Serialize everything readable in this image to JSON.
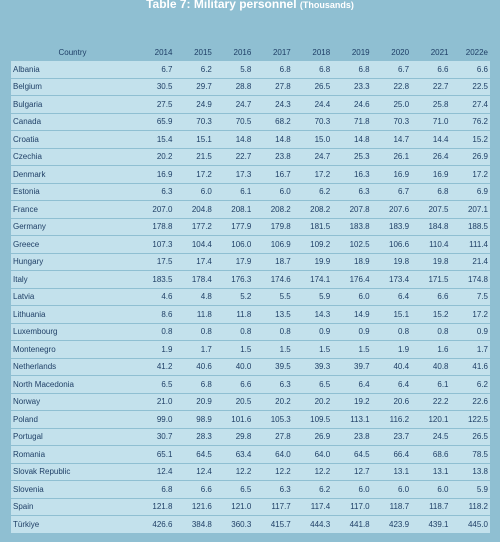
{
  "header": {
    "title": "Table 7: Military personnel",
    "unit": "(Thousands)"
  },
  "table": {
    "columns": [
      "Country",
      "2014",
      "2015",
      "2016",
      "2017",
      "2018",
      "2019",
      "2020",
      "2021",
      "2022e"
    ],
    "rows": [
      [
        "Albania",
        "6.7",
        "6.2",
        "5.8",
        "6.8",
        "6.8",
        "6.8",
        "6.7",
        "6.6",
        "6.6"
      ],
      [
        "Belgium",
        "30.5",
        "29.7",
        "28.8",
        "27.8",
        "26.5",
        "23.3",
        "22.8",
        "22.7",
        "22.5"
      ],
      [
        "Bulgaria",
        "27.5",
        "24.9",
        "24.7",
        "24.3",
        "24.4",
        "24.6",
        "25.0",
        "25.8",
        "27.4"
      ],
      [
        "Canada",
        "65.9",
        "70.3",
        "70.5",
        "68.2",
        "70.3",
        "71.8",
        "70.3",
        "71.0",
        "76.2"
      ],
      [
        "Croatia",
        "15.4",
        "15.1",
        "14.8",
        "14.8",
        "15.0",
        "14.8",
        "14.7",
        "14.4",
        "15.2"
      ],
      [
        "Czechia",
        "20.2",
        "21.5",
        "22.7",
        "23.8",
        "24.7",
        "25.3",
        "26.1",
        "26.4",
        "26.9"
      ],
      [
        "Denmark",
        "16.9",
        "17.2",
        "17.3",
        "16.7",
        "17.2",
        "16.3",
        "16.9",
        "16.9",
        "17.2"
      ],
      [
        "Estonia",
        "6.3",
        "6.0",
        "6.1",
        "6.0",
        "6.2",
        "6.3",
        "6.7",
        "6.8",
        "6.9"
      ],
      [
        "France",
        "207.0",
        "204.8",
        "208.1",
        "208.2",
        "208.2",
        "207.8",
        "207.6",
        "207.5",
        "207.1"
      ],
      [
        "Germany",
        "178.8",
        "177.2",
        "177.9",
        "179.8",
        "181.5",
        "183.8",
        "183.9",
        "184.8",
        "188.5"
      ],
      [
        "Greece",
        "107.3",
        "104.4",
        "106.0",
        "106.9",
        "109.2",
        "102.5",
        "106.6",
        "110.4",
        "111.4"
      ],
      [
        "Hungary",
        "17.5",
        "17.4",
        "17.9",
        "18.7",
        "19.9",
        "18.9",
        "19.8",
        "19.8",
        "21.4"
      ],
      [
        "Italy",
        "183.5",
        "178.4",
        "176.3",
        "174.6",
        "174.1",
        "176.4",
        "173.4",
        "171.5",
        "174.8"
      ],
      [
        "Latvia",
        "4.6",
        "4.8",
        "5.2",
        "5.5",
        "5.9",
        "6.0",
        "6.4",
        "6.6",
        "7.5"
      ],
      [
        "Lithuania",
        "8.6",
        "11.8",
        "11.8",
        "13.5",
        "14.3",
        "14.9",
        "15.1",
        "15.2",
        "17.2"
      ],
      [
        "Luxembourg",
        "0.8",
        "0.8",
        "0.8",
        "0.8",
        "0.9",
        "0.9",
        "0.8",
        "0.8",
        "0.9"
      ],
      [
        "Montenegro",
        "1.9",
        "1.7",
        "1.5",
        "1.5",
        "1.5",
        "1.5",
        "1.9",
        "1.6",
        "1.7"
      ],
      [
        "Netherlands",
        "41.2",
        "40.6",
        "40.0",
        "39.5",
        "39.3",
        "39.7",
        "40.4",
        "40.8",
        "41.6"
      ],
      [
        "North Macedonia",
        "6.5",
        "6.8",
        "6.6",
        "6.3",
        "6.5",
        "6.4",
        "6.4",
        "6.1",
        "6.2"
      ],
      [
        "Norway",
        "21.0",
        "20.9",
        "20.5",
        "20.2",
        "20.2",
        "19.2",
        "20.6",
        "22.2",
        "22.6"
      ],
      [
        "Poland",
        "99.0",
        "98.9",
        "101.6",
        "105.3",
        "109.5",
        "113.1",
        "116.2",
        "120.1",
        "122.5"
      ],
      [
        "Portugal",
        "30.7",
        "28.3",
        "29.8",
        "27.8",
        "26.9",
        "23.8",
        "23.7",
        "24.5",
        "26.5"
      ],
      [
        "Romania",
        "65.1",
        "64.5",
        "63.4",
        "64.0",
        "64.0",
        "64.5",
        "66.4",
        "68.6",
        "78.5"
      ],
      [
        "Slovak Republic",
        "12.4",
        "12.4",
        "12.2",
        "12.2",
        "12.2",
        "12.7",
        "13.1",
        "13.1",
        "13.8"
      ],
      [
        "Slovenia",
        "6.8",
        "6.6",
        "6.5",
        "6.3",
        "6.2",
        "6.0",
        "6.0",
        "6.0",
        "5.9"
      ],
      [
        "Spain",
        "121.8",
        "121.6",
        "121.0",
        "117.7",
        "117.4",
        "117.0",
        "118.7",
        "118.7",
        "118.2"
      ],
      [
        "Türkiye",
        "426.6",
        "384.8",
        "360.3",
        "415.7",
        "444.3",
        "441.8",
        "423.9",
        "439.1",
        "445.0"
      ]
    ]
  }
}
